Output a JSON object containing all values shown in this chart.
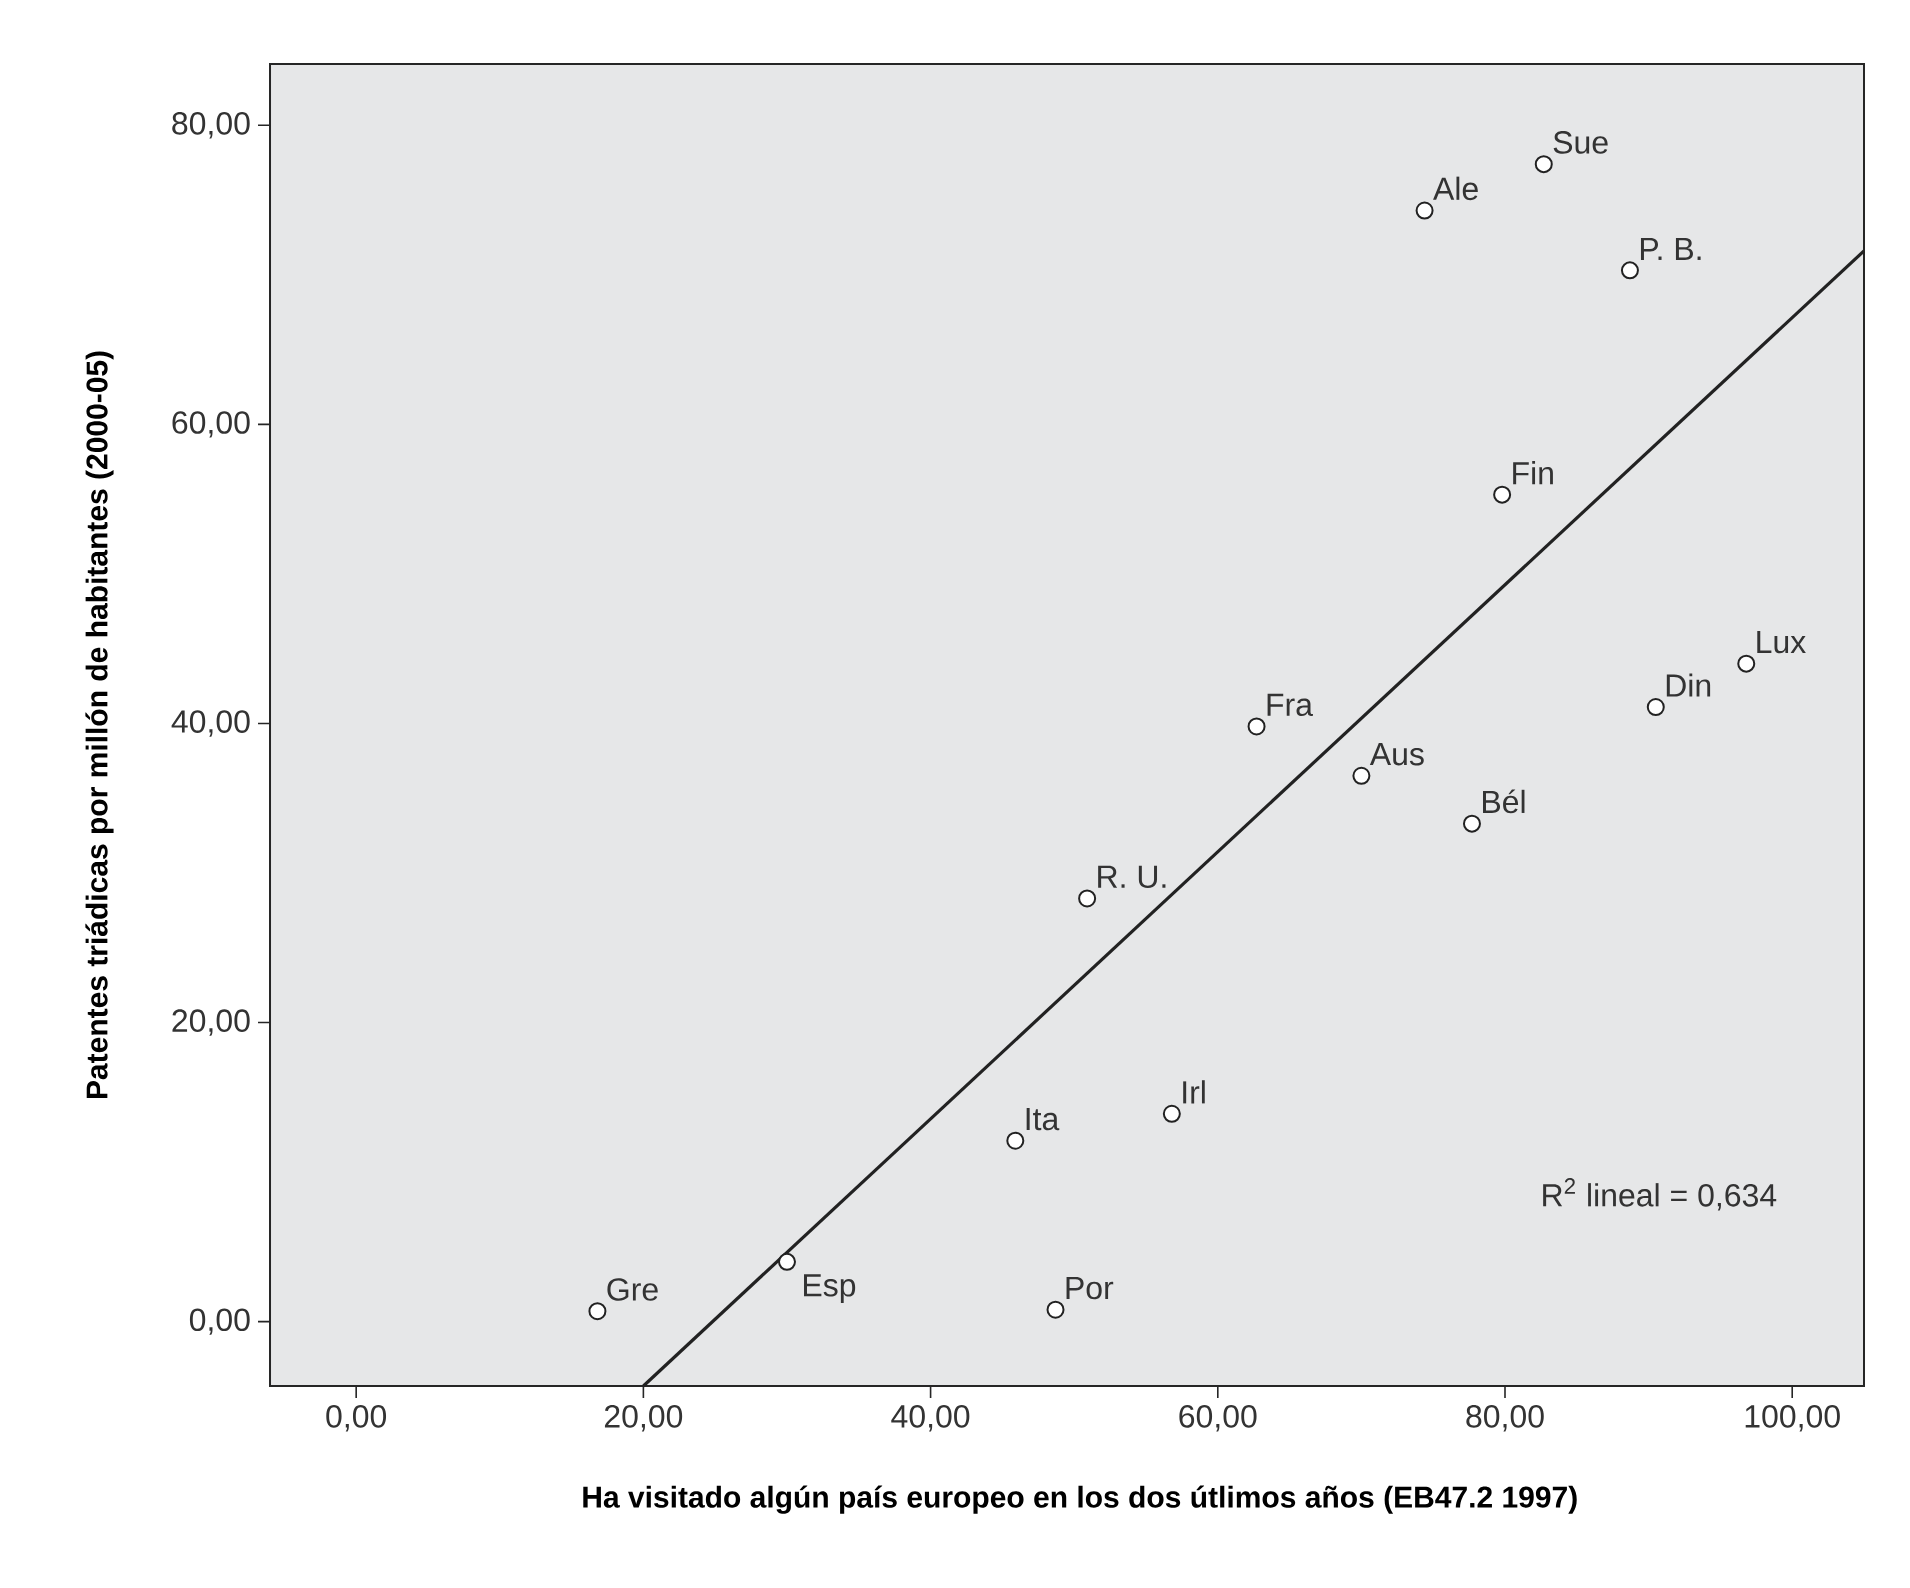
{
  "chart_data": {
    "type": "scatter",
    "xlabel": "Ha visitado algún país europeo en los dos útlimos años (EB47.2 1997)",
    "ylabel": "Patentes triádicas por millón de habitantes (2000-05)",
    "xlim": [
      -6,
      105
    ],
    "ylim": [
      -4.3,
      84.1
    ],
    "xticks": [
      {
        "value": 0,
        "label": "0,00"
      },
      {
        "value": 20,
        "label": "20,00"
      },
      {
        "value": 40,
        "label": "40,00"
      },
      {
        "value": 60,
        "label": "60,00"
      },
      {
        "value": 80,
        "label": "80,00"
      },
      {
        "value": 100,
        "label": "100,00"
      }
    ],
    "yticks": [
      {
        "value": 0,
        "label": "0,00"
      },
      {
        "value": 20,
        "label": "20,00"
      },
      {
        "value": 40,
        "label": "40,00"
      },
      {
        "value": 60,
        "label": "60,00"
      },
      {
        "value": 80,
        "label": "80,00"
      }
    ],
    "grid": false,
    "series": [
      {
        "color": "#222222",
        "marker": "circle",
        "x": [
          16.8,
          30.0,
          45.9,
          56.8,
          48.7,
          50.9,
          77.7,
          74.4,
          82.7,
          88.7,
          79.8,
          62.7,
          70.0,
          90.5,
          96.8
        ],
        "values": [
          0.7,
          4.0,
          12.1,
          13.9,
          0.8,
          28.3,
          33.3,
          74.3,
          77.4,
          70.3,
          55.3,
          39.8,
          36.5,
          41.1,
          44.0
        ]
      },
      {
        "type": "line",
        "marker": "none",
        "color": "#222222",
        "x": [
          20.0,
          105
        ],
        "values": [
          -4.3,
          71.6
        ]
      }
    ],
    "annotations": [
      {
        "text": "Gre",
        "x": 16.8,
        "y": 0.7
      },
      {
        "text": "Esp",
        "x": 30.0,
        "y": 4.0
      },
      {
        "text": "Ita",
        "x": 45.9,
        "y": 12.1
      },
      {
        "text": "Irl",
        "x": 56.8,
        "y": 13.9
      },
      {
        "text": "Por",
        "x": 48.7,
        "y": 0.8
      },
      {
        "text": "R. U.",
        "x": 50.9,
        "y": 28.3
      },
      {
        "text": "Bél",
        "x": 77.7,
        "y": 33.3
      },
      {
        "text": "Ale",
        "x": 74.4,
        "y": 74.3
      },
      {
        "text": "Sue",
        "x": 82.7,
        "y": 77.4
      },
      {
        "text": "P. B.",
        "x": 88.7,
        "y": 70.3
      },
      {
        "text": "Fin",
        "x": 79.8,
        "y": 55.3
      },
      {
        "text": "Fra",
        "x": 62.7,
        "y": 39.8
      },
      {
        "text": "Aus",
        "x": 70.0,
        "y": 36.5
      },
      {
        "text": "Din",
        "x": 90.5,
        "y": 41.1
      },
      {
        "text": "Lux",
        "x": 96.8,
        "y": 44.0
      },
      "R$^{2}$ lineal = 0,634"
    ]
  }
}
